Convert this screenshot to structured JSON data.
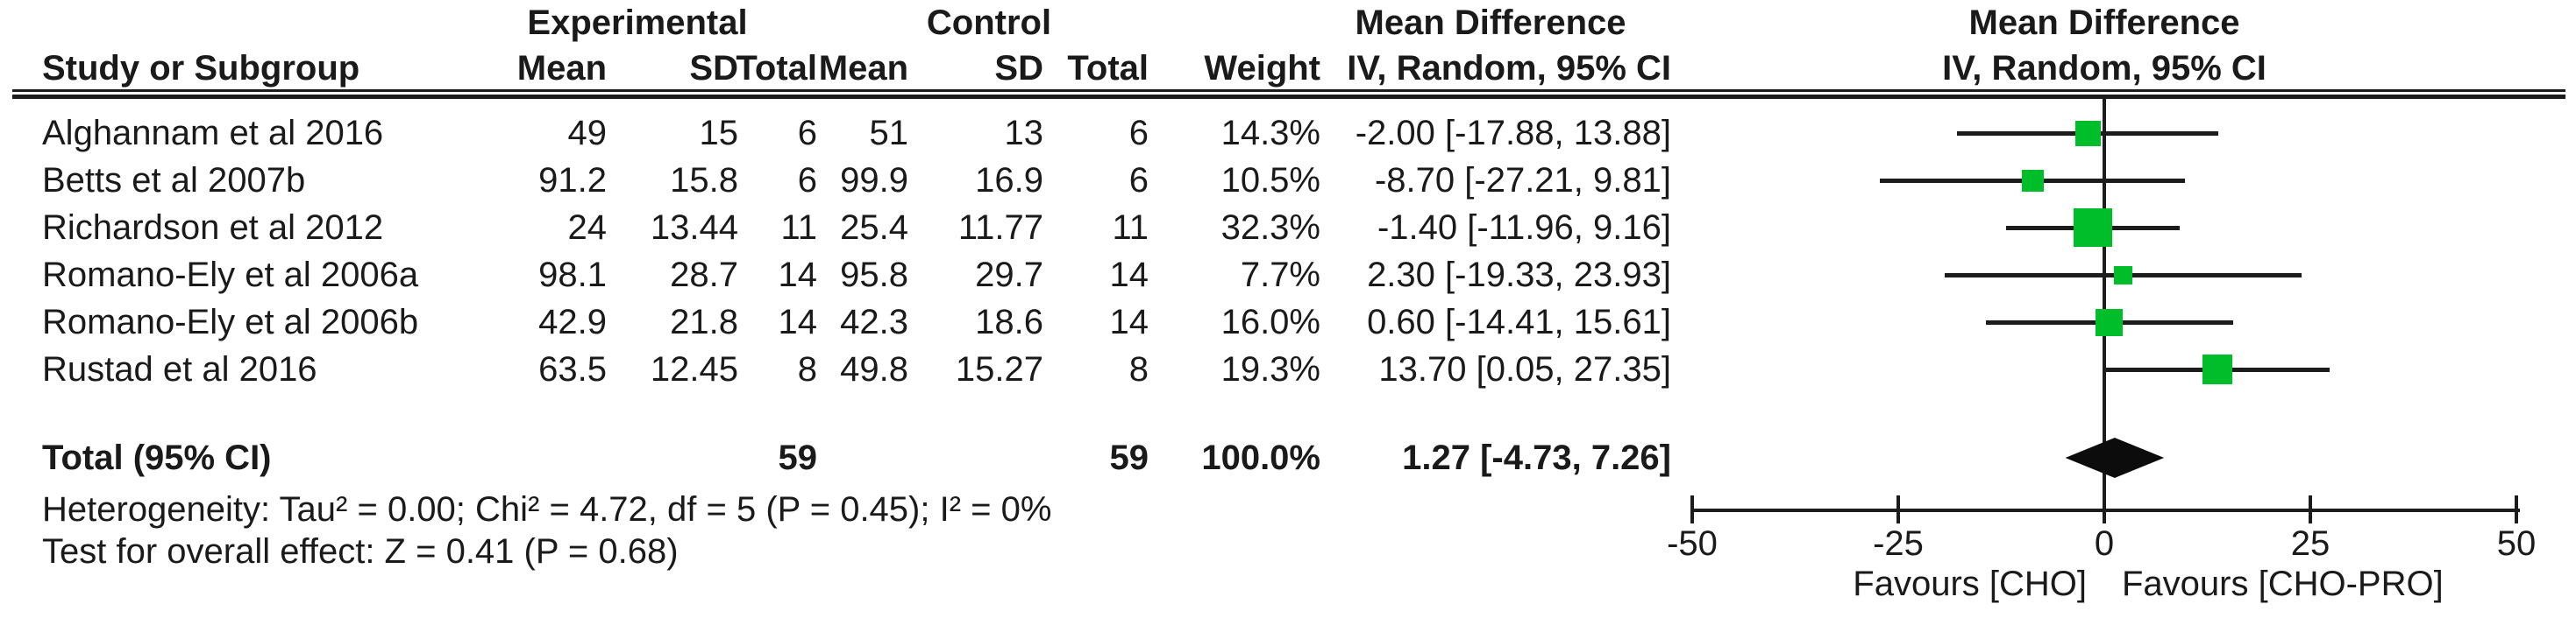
{
  "chart_data": {
    "type": "forest",
    "group_headers": {
      "experimental": "Experimental",
      "control": "Control",
      "mean_difference": "Mean Difference"
    },
    "column_headers": {
      "study": "Study or Subgroup",
      "mean": "Mean",
      "sd": "SD",
      "total": "Total",
      "weight": "Weight",
      "iv_ci": "IV, Random, 95% CI"
    },
    "studies": [
      {
        "study": "Alghannam et al 2016",
        "exp_mean": "49",
        "exp_sd": "15",
        "exp_total": "6",
        "ctrl_mean": "51",
        "ctrl_sd": "13",
        "ctrl_total": "6",
        "weight": "14.3%",
        "weight_value": 14.3,
        "md": -2.0,
        "ci_low": -17.88,
        "ci_high": 13.88,
        "ci_text": "-2.00 [-17.88, 13.88]"
      },
      {
        "study": "Betts et al 2007b",
        "exp_mean": "91.2",
        "exp_sd": "15.8",
        "exp_total": "6",
        "ctrl_mean": "99.9",
        "ctrl_sd": "16.9",
        "ctrl_total": "6",
        "weight": "10.5%",
        "weight_value": 10.5,
        "md": -8.7,
        "ci_low": -27.21,
        "ci_high": 9.81,
        "ci_text": "-8.70 [-27.21, 9.81]"
      },
      {
        "study": "Richardson et al 2012",
        "exp_mean": "24",
        "exp_sd": "13.44",
        "exp_total": "11",
        "ctrl_mean": "25.4",
        "ctrl_sd": "11.77",
        "ctrl_total": "11",
        "weight": "32.3%",
        "weight_value": 32.3,
        "md": -1.4,
        "ci_low": -11.96,
        "ci_high": 9.16,
        "ci_text": "-1.40 [-11.96, 9.16]"
      },
      {
        "study": "Romano-Ely et al 2006a",
        "exp_mean": "98.1",
        "exp_sd": "28.7",
        "exp_total": "14",
        "ctrl_mean": "95.8",
        "ctrl_sd": "29.7",
        "ctrl_total": "14",
        "weight": "7.7%",
        "weight_value": 7.7,
        "md": 2.3,
        "ci_low": -19.33,
        "ci_high": 23.93,
        "ci_text": "2.30 [-19.33, 23.93]"
      },
      {
        "study": "Romano-Ely et al 2006b",
        "exp_mean": "42.9",
        "exp_sd": "21.8",
        "exp_total": "14",
        "ctrl_mean": "42.3",
        "ctrl_sd": "18.6",
        "ctrl_total": "14",
        "weight": "16.0%",
        "weight_value": 16.0,
        "md": 0.6,
        "ci_low": -14.41,
        "ci_high": 15.61,
        "ci_text": "0.60 [-14.41, 15.61]"
      },
      {
        "study": "Rustad et al 2016",
        "exp_mean": "63.5",
        "exp_sd": "12.45",
        "exp_total": "8",
        "ctrl_mean": "49.8",
        "ctrl_sd": "15.27",
        "ctrl_total": "8",
        "weight": "19.3%",
        "weight_value": 19.3,
        "md": 13.7,
        "ci_low": 0.05,
        "ci_high": 27.35,
        "ci_text": "13.70 [0.05, 27.35]"
      }
    ],
    "total": {
      "label": "Total (95% CI)",
      "exp_total": "59",
      "ctrl_total": "59",
      "weight": "100.0%",
      "md": 1.27,
      "ci_low": -4.73,
      "ci_high": 7.26,
      "ci_text": "1.27 [-4.73, 7.26]"
    },
    "heterogeneity": "Heterogeneity: Tau² = 0.00; Chi² = 4.72, df = 5 (P = 0.45); I² = 0%",
    "overall_effect": "Test for overall effect: Z = 0.41 (P = 0.68)",
    "axis": {
      "min": -50,
      "max": 50,
      "tick_values": [
        -50,
        -25,
        0,
        25,
        50
      ],
      "ticks": [
        "-50",
        "-25",
        "0",
        "25",
        "50"
      ],
      "favours_left": "Favours [CHO]",
      "favours_right": "Favours [CHO-PRO]"
    },
    "colors": {
      "square": "#00bd2a",
      "diamond": "#0c0c0c",
      "line": "#1c1c1c"
    }
  }
}
